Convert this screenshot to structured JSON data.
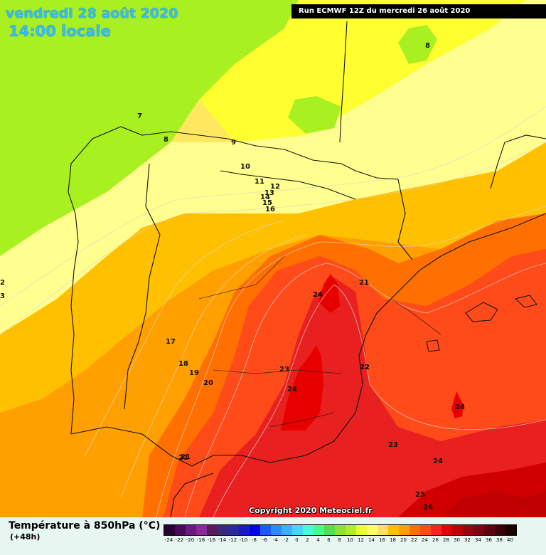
{
  "header": {
    "date": "vendredi 28 août 2020",
    "time": "14:00 locale",
    "run": "Run ECMWF 12Z du mercredi 26 août 2020"
  },
  "copyright": "Copyright 2020 Meteociel.fr",
  "legend": {
    "title": "Température à 850hPa (°C)",
    "lead": "(+48h)",
    "scale": [
      {
        "v": "-24",
        "c": "#2a0034"
      },
      {
        "v": "-22",
        "c": "#4a0a5c"
      },
      {
        "v": "-20",
        "c": "#6a1a80"
      },
      {
        "v": "-18",
        "c": "#8a2a9c"
      },
      {
        "v": "-16",
        "c": "#5a1a5e"
      },
      {
        "v": "-14",
        "c": "#3a2a7a"
      },
      {
        "v": "-12",
        "c": "#2a2aa0"
      },
      {
        "v": "-10",
        "c": "#1a1ac8"
      },
      {
        "v": "-8",
        "c": "#0000ee"
      },
      {
        "v": "-6",
        "c": "#1a5aff"
      },
      {
        "v": "-4",
        "c": "#2a8aff"
      },
      {
        "v": "-2",
        "c": "#3ab0ff"
      },
      {
        "v": "0",
        "c": "#40d8ff"
      },
      {
        "v": "2",
        "c": "#40ffd8"
      },
      {
        "v": "4",
        "c": "#40ff90"
      },
      {
        "v": "6",
        "c": "#50e050"
      },
      {
        "v": "8",
        "c": "#90e030"
      },
      {
        "v": "10",
        "c": "#b0f020"
      },
      {
        "v": "12",
        "c": "#e8ff30"
      },
      {
        "v": "14",
        "c": "#ffff60"
      },
      {
        "v": "16",
        "c": "#ffe060"
      },
      {
        "v": "18",
        "c": "#ffc000"
      },
      {
        "v": "20",
        "c": "#ffa000"
      },
      {
        "v": "22",
        "c": "#ff7000"
      },
      {
        "v": "24",
        "c": "#ff4a1a"
      },
      {
        "v": "26",
        "c": "#ff2020"
      },
      {
        "v": "28",
        "c": "#e80000"
      },
      {
        "v": "30",
        "c": "#c00000"
      },
      {
        "v": "32",
        "c": "#9a0010"
      },
      {
        "v": "34",
        "c": "#800018"
      },
      {
        "v": "36",
        "c": "#5a0010"
      },
      {
        "v": "38",
        "c": "#3a0008"
      },
      {
        "v": "40",
        "c": "#1a0000"
      }
    ]
  },
  "contour_labels": [
    "7",
    "8",
    "9",
    "10",
    "11",
    "12",
    "13",
    "14",
    "15",
    "16",
    "17",
    "18",
    "19",
    "20",
    "21",
    "22",
    "23",
    "24",
    "25",
    "26",
    "8",
    "24",
    "21",
    "21",
    "22",
    "23",
    "24",
    "24",
    "24",
    "2",
    "3"
  ]
}
